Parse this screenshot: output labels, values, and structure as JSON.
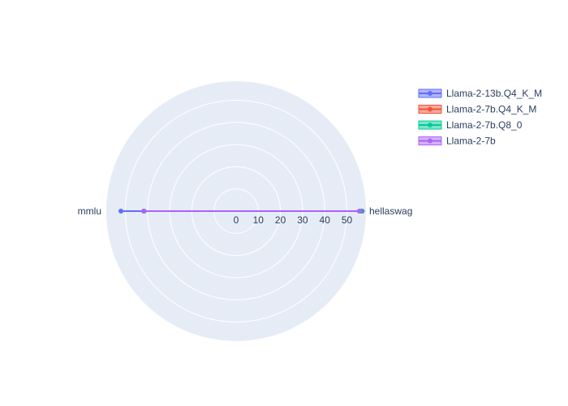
{
  "chart_data": {
    "type": "polar",
    "categories": [
      "hellaswag",
      "mmlu"
    ],
    "radial_ticks": [
      "0",
      "10",
      "20",
      "30",
      "40",
      "50"
    ],
    "radial_range": [
      0,
      58.6
    ],
    "grid": true,
    "legend_position": "top-right",
    "series": [
      {
        "name": "Llama-2-13b.Q4_K_M",
        "color": "#636efa",
        "values": [
          56.9,
          52.0
        ]
      },
      {
        "name": "Llama-2-7b.Q4_K_M",
        "color": "#ef553b",
        "values": [
          56.3,
          41.7
        ]
      },
      {
        "name": "Llama-2-7b.Q8_0",
        "color": "#00cc96",
        "values": [
          56.2,
          41.5
        ]
      },
      {
        "name": "Llama-2-7b",
        "color": "#ab63fa",
        "values": [
          55.6,
          41.7
        ]
      }
    ]
  }
}
